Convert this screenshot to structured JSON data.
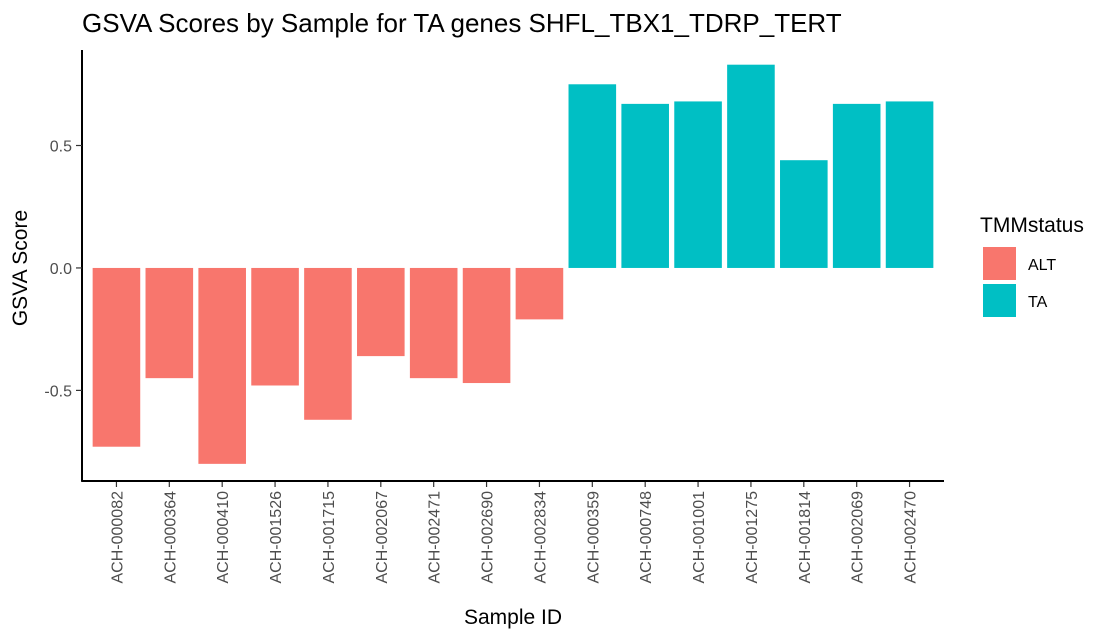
{
  "chart_data": {
    "type": "bar",
    "title": "GSVA Scores by Sample for TA genes SHFL_TBX1_TDRP_TERT",
    "xlabel": "Sample ID",
    "ylabel": "GSVA Score",
    "ylim": [
      -0.87,
      0.89
    ],
    "yticks": [
      -0.5,
      0.0,
      0.5
    ],
    "ytick_labels": [
      "-0.5",
      "0.0",
      "0.5"
    ],
    "grid": false,
    "legend_position": "right",
    "legend": {
      "title": "TMMstatus",
      "entries": [
        {
          "label": "ALT",
          "color": "#F8766D"
        },
        {
          "label": "TA",
          "color": "#00BFC4"
        }
      ]
    },
    "categories": [
      "ACH-000082",
      "ACH-000364",
      "ACH-000410",
      "ACH-001526",
      "ACH-001715",
      "ACH-002067",
      "ACH-002471",
      "ACH-002690",
      "ACH-002834",
      "ACH-000359",
      "ACH-000748",
      "ACH-001001",
      "ACH-001275",
      "ACH-001814",
      "ACH-002069",
      "ACH-002470"
    ],
    "values": [
      -0.73,
      -0.45,
      -0.8,
      -0.48,
      -0.62,
      -0.36,
      -0.45,
      -0.47,
      -0.21,
      0.75,
      0.67,
      0.68,
      0.83,
      0.44,
      0.67,
      0.68
    ],
    "groups": [
      "ALT",
      "ALT",
      "ALT",
      "ALT",
      "ALT",
      "ALT",
      "ALT",
      "ALT",
      "ALT",
      "TA",
      "TA",
      "TA",
      "TA",
      "TA",
      "TA",
      "TA"
    ]
  }
}
